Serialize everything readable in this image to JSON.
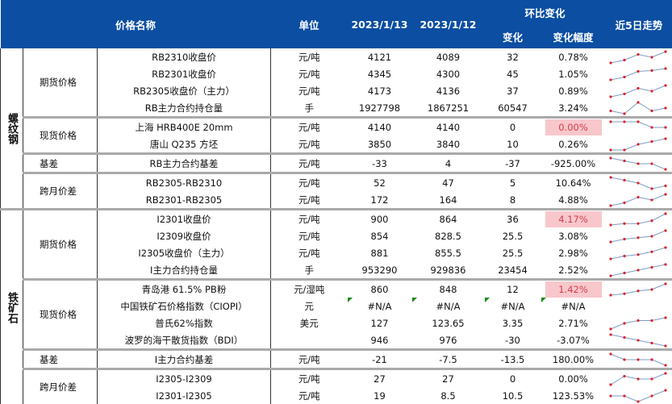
{
  "header": {
    "name": "价格名称",
    "unit": "单位",
    "date1": "2023/1/13",
    "date2": "2023/1/12",
    "mom": "环比变化",
    "chg": "变化",
    "pct": "变化幅度",
    "trend": "近5日走势"
  },
  "groups": [
    {
      "category": "螺纹钢",
      "sections": [
        {
          "label": "期货价格",
          "rows": [
            {
              "name": "RB2310收盘价",
              "unit": "元/吨",
              "d1": "4121",
              "d2": "4089",
              "chg": "32",
              "pct": "0.78%",
              "trend": [
                1,
                2,
                4,
                3,
                5
              ]
            },
            {
              "name": "RB2301收盘价",
              "unit": "元/吨",
              "d1": "4345",
              "d2": "4300",
              "chg": "45",
              "pct": "1.05%",
              "trend": [
                1,
                2,
                4,
                4.3,
                5
              ]
            },
            {
              "name": "RB2305收盘价（主力）",
              "unit": "元/吨",
              "d1": "4173",
              "d2": "4136",
              "chg": "37",
              "pct": "0.89%",
              "trend": [
                1,
                2,
                4,
                3,
                5
              ]
            },
            {
              "name": "RB主力合约持仓量",
              "unit": "手",
              "d1": "1927798",
              "d2": "1867251",
              "chg": "60547",
              "pct": "3.24%",
              "trend": [
                2,
                1,
                5,
                2,
                3
              ]
            }
          ]
        },
        {
          "label": "现货价格",
          "rows": [
            {
              "name": "上海 HRB400E 20mm",
              "unit": "元/吨",
              "d1": "4140",
              "d2": "4140",
              "chg": "0",
              "pct": "0.00%",
              "highlight": true,
              "trend": [
                5,
                5,
                5,
                3,
                3
              ]
            },
            {
              "name": "唐山 Q235 方坯",
              "unit": "元/吨",
              "d1": "3850",
              "d2": "3840",
              "chg": "10",
              "pct": "0.26%",
              "trend": [
                1,
                1,
                3,
                4,
                5
              ]
            }
          ]
        },
        {
          "label": "基差",
          "rows": [
            {
              "name": "RB主力合约基差",
              "unit": "元/吨",
              "d1": "-33",
              "d2": "4",
              "chg": "-37",
              "pct": "-925.00%",
              "trend": [
                5,
                4,
                3,
                3,
                1
              ]
            }
          ]
        },
        {
          "label": "跨月价差",
          "rows": [
            {
              "name": "RB2305-RB2310",
              "unit": "元/吨",
              "d1": "52",
              "d2": "47",
              "chg": "5",
              "pct": "10.64%",
              "trend": [
                5,
                4,
                3,
                1,
                2
              ]
            },
            {
              "name": "RB2301-RB2305",
              "unit": "元/吨",
              "d1": "172",
              "d2": "164",
              "chg": "8",
              "pct": "4.88%",
              "trend": [
                1,
                2,
                4,
                3,
                5
              ]
            }
          ]
        }
      ]
    },
    {
      "category": "铁矿石",
      "sections": [
        {
          "label": "期货价格",
          "rows": [
            {
              "name": "I2301收盘价",
              "unit": "元/吨",
              "d1": "900",
              "d2": "864",
              "chg": "36",
              "pct": "4.17%",
              "highlight": true,
              "trend": [
                1,
                1.5,
                1.5,
                2.5,
                5
              ]
            },
            {
              "name": "I2309收盘价",
              "unit": "元/吨",
              "d1": "854",
              "d2": "828.5",
              "chg": "25.5",
              "pct": "3.08%",
              "trend": [
                1,
                2,
                2.5,
                3,
                5
              ]
            },
            {
              "name": "I2305收盘价（主力）",
              "unit": "元/吨",
              "d1": "881",
              "d2": "855.5",
              "chg": "25.5",
              "pct": "2.98%",
              "trend": [
                1,
                2,
                2.5,
                3.5,
                5
              ]
            },
            {
              "name": "I主力合约持仓量",
              "unit": "手",
              "d1": "953290",
              "d2": "929836",
              "chg": "23454",
              "pct": "2.52%",
              "trend": [
                1,
                2,
                3,
                4,
                5
              ]
            }
          ]
        },
        {
          "label": "现货价格",
          "rows": [
            {
              "name": "青岛港 61.5% PB粉",
              "unit": "元/湿吨",
              "d1": "860",
              "d2": "848",
              "chg": "12",
              "pct": "1.42%",
              "highlight": true,
              "trend": [
                1,
                1.5,
                2.5,
                3,
                5
              ]
            },
            {
              "name": "中国铁矿石价格指数（CIOPI）",
              "unit": "元",
              "d1": "#N/A",
              "d2": "#N/A",
              "chg": "#N/A",
              "pct": "#N/A",
              "na": true,
              "trend": null
            },
            {
              "name": "普氏62%指数",
              "unit": "美元",
              "d1": "127",
              "d2": "123.65",
              "chg": "3.35",
              "pct": "2.71%",
              "trend": [
                1,
                3,
                4,
                4,
                5
              ]
            },
            {
              "name": "波罗的海干散货指数（BDI）",
              "unit": "",
              "d1": "946",
              "d2": "976",
              "chg": "-30",
              "pct": "-3.07%",
              "trend": [
                5,
                4,
                3,
                2,
                1
              ]
            }
          ]
        },
        {
          "label": "基差",
          "rows": [
            {
              "name": "I主力合约基差",
              "unit": "元/吨",
              "d1": "-21",
              "d2": "-7.5",
              "chg": "-13.5",
              "pct": "180.00%",
              "trend": [
                5,
                3,
                3,
                3,
                1
              ]
            }
          ]
        },
        {
          "label": "跨月价差",
          "rows": [
            {
              "name": "I2305-I2309",
              "unit": "元/吨",
              "d1": "27",
              "d2": "27",
              "chg": "0",
              "pct": "0.00%",
              "trend": [
                1,
                4,
                3,
                3,
                5
              ]
            },
            {
              "name": "I2301-I2305",
              "unit": "元/吨",
              "d1": "19",
              "d2": "8.5",
              "chg": "10.5",
              "pct": "123.53%",
              "trend": [
                3,
                3,
                1,
                3,
                5
              ]
            }
          ]
        }
      ]
    }
  ]
}
